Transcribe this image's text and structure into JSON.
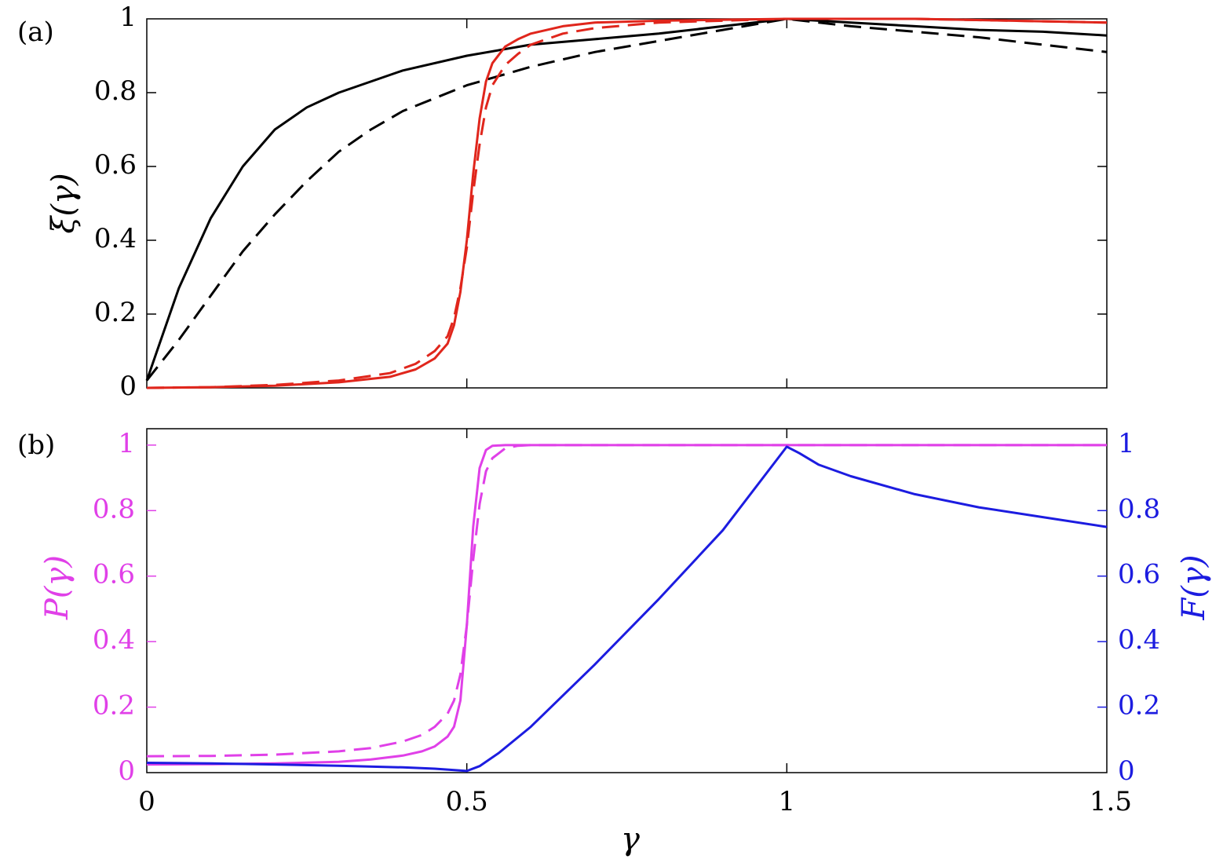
{
  "chart_data": [
    {
      "panel_label": "(a)",
      "type": "line",
      "ylabel": "ξ(γ)",
      "xlabel": "",
      "xlim": [
        0,
        1.5
      ],
      "ylim": [
        0,
        1
      ],
      "yticks": [
        {
          "value": 0,
          "label": "0"
        },
        {
          "value": 0.2,
          "label": "0.2"
        },
        {
          "value": 0.4,
          "label": "0.4"
        },
        {
          "value": 0.6,
          "label": "0.6"
        },
        {
          "value": 0.8,
          "label": "0.8"
        },
        {
          "value": 1,
          "label": "1"
        }
      ],
      "xtick_marks": [
        0.5,
        1
      ],
      "series": [
        {
          "color": "#000000",
          "dash": "solid",
          "x": [
            0,
            0.02,
            0.05,
            0.1,
            0.15,
            0.2,
            0.25,
            0.3,
            0.4,
            0.5,
            0.6,
            0.7,
            0.8,
            0.9,
            1.0,
            1.1,
            1.2,
            1.3,
            1.4,
            1.5
          ],
          "y": [
            0.02,
            0.12,
            0.27,
            0.46,
            0.6,
            0.7,
            0.76,
            0.8,
            0.86,
            0.9,
            0.93,
            0.945,
            0.96,
            0.98,
            1.0,
            0.99,
            0.98,
            0.97,
            0.965,
            0.955
          ]
        },
        {
          "color": "#000000",
          "dash": "dashed",
          "x": [
            0,
            0.05,
            0.1,
            0.15,
            0.2,
            0.25,
            0.3,
            0.35,
            0.4,
            0.5,
            0.6,
            0.7,
            0.8,
            0.9,
            1.0,
            1.1,
            1.2,
            1.3,
            1.4,
            1.5
          ],
          "y": [
            0.02,
            0.13,
            0.25,
            0.37,
            0.47,
            0.56,
            0.64,
            0.7,
            0.75,
            0.82,
            0.87,
            0.91,
            0.94,
            0.97,
            1.0,
            0.98,
            0.965,
            0.95,
            0.93,
            0.91
          ]
        },
        {
          "color": "#e0261c",
          "dash": "solid",
          "x": [
            0,
            0.1,
            0.2,
            0.3,
            0.38,
            0.42,
            0.45,
            0.47,
            0.48,
            0.49,
            0.5,
            0.51,
            0.52,
            0.53,
            0.54,
            0.56,
            0.58,
            0.6,
            0.65,
            0.7,
            0.8,
            1.0,
            1.2,
            1.5
          ],
          "y": [
            0.0,
            0.002,
            0.006,
            0.015,
            0.03,
            0.05,
            0.08,
            0.12,
            0.17,
            0.26,
            0.4,
            0.58,
            0.73,
            0.83,
            0.88,
            0.925,
            0.945,
            0.96,
            0.98,
            0.99,
            0.995,
            1.0,
            1.0,
            0.99
          ]
        },
        {
          "color": "#e0261c",
          "dash": "dashed",
          "x": [
            0,
            0.1,
            0.2,
            0.3,
            0.38,
            0.42,
            0.45,
            0.47,
            0.48,
            0.49,
            0.5,
            0.51,
            0.52,
            0.53,
            0.54,
            0.56,
            0.58,
            0.6,
            0.65,
            0.7,
            0.8,
            1.0,
            1.2,
            1.5
          ],
          "y": [
            0.0,
            0.002,
            0.008,
            0.02,
            0.04,
            0.065,
            0.1,
            0.14,
            0.19,
            0.27,
            0.38,
            0.53,
            0.66,
            0.76,
            0.82,
            0.875,
            0.905,
            0.93,
            0.96,
            0.975,
            0.99,
            1.0,
            1.0,
            0.99
          ]
        }
      ]
    },
    {
      "panel_label": "(b)",
      "type": "line",
      "xlabel": "γ",
      "ylabel_left": "P(γ)",
      "ylabel_right": "F(γ)",
      "left_axis_color": "#e040e8",
      "right_axis_color": "#1c1ce0",
      "xlim": [
        0,
        1.5
      ],
      "ylim": [
        0,
        1.05
      ],
      "xticks": [
        {
          "value": 0,
          "label": "0"
        },
        {
          "value": 0.5,
          "label": "0.5"
        },
        {
          "value": 1,
          "label": "1"
        },
        {
          "value": 1.5,
          "label": "1.5"
        }
      ],
      "yticks_left": [
        {
          "value": 0,
          "label": "0"
        },
        {
          "value": 0.2,
          "label": "0.2"
        },
        {
          "value": 0.4,
          "label": "0.4"
        },
        {
          "value": 0.6,
          "label": "0.6"
        },
        {
          "value": 0.8,
          "label": "0.8"
        },
        {
          "value": 1,
          "label": "1"
        }
      ],
      "yticks_right": [
        {
          "value": 0,
          "label": "0"
        },
        {
          "value": 0.2,
          "label": "0.2"
        },
        {
          "value": 0.4,
          "label": "0.4"
        },
        {
          "value": 0.6,
          "label": "0.6"
        },
        {
          "value": 0.8,
          "label": "0.8"
        },
        {
          "value": 1,
          "label": "1"
        }
      ],
      "series": [
        {
          "color": "#e040e8",
          "dash": "solid",
          "axis": "left",
          "x": [
            0,
            0.1,
            0.2,
            0.3,
            0.35,
            0.4,
            0.43,
            0.45,
            0.47,
            0.48,
            0.49,
            0.5,
            0.51,
            0.52,
            0.53,
            0.54,
            0.56,
            0.6,
            0.8,
            1.0,
            1.5
          ],
          "y": [
            0.025,
            0.026,
            0.028,
            0.033,
            0.04,
            0.052,
            0.065,
            0.08,
            0.11,
            0.14,
            0.22,
            0.45,
            0.75,
            0.93,
            0.985,
            0.998,
            1.0,
            1.0,
            1.0,
            1.0,
            1.0
          ]
        },
        {
          "color": "#e040e8",
          "dash": "dashed",
          "axis": "left",
          "x": [
            0,
            0.1,
            0.2,
            0.3,
            0.35,
            0.4,
            0.43,
            0.45,
            0.47,
            0.48,
            0.49,
            0.5,
            0.51,
            0.52,
            0.53,
            0.54,
            0.56,
            0.58,
            0.6,
            0.8,
            1.0,
            1.5
          ],
          "y": [
            0.05,
            0.051,
            0.055,
            0.065,
            0.075,
            0.095,
            0.115,
            0.14,
            0.18,
            0.22,
            0.3,
            0.45,
            0.65,
            0.82,
            0.92,
            0.96,
            0.99,
            0.998,
            1.0,
            1.0,
            1.0,
            1.0
          ]
        },
        {
          "color": "#1c1ce0",
          "dash": "solid",
          "axis": "right",
          "x": [
            0,
            0.1,
            0.2,
            0.3,
            0.4,
            0.45,
            0.5,
            0.52,
            0.55,
            0.6,
            0.7,
            0.8,
            0.9,
            1.0,
            1.02,
            1.05,
            1.1,
            1.2,
            1.3,
            1.4,
            1.5
          ],
          "y": [
            0.03,
            0.028,
            0.025,
            0.021,
            0.016,
            0.012,
            0.005,
            0.02,
            0.06,
            0.14,
            0.33,
            0.53,
            0.74,
            0.995,
            0.975,
            0.94,
            0.905,
            0.85,
            0.81,
            0.78,
            0.75
          ]
        }
      ]
    }
  ]
}
